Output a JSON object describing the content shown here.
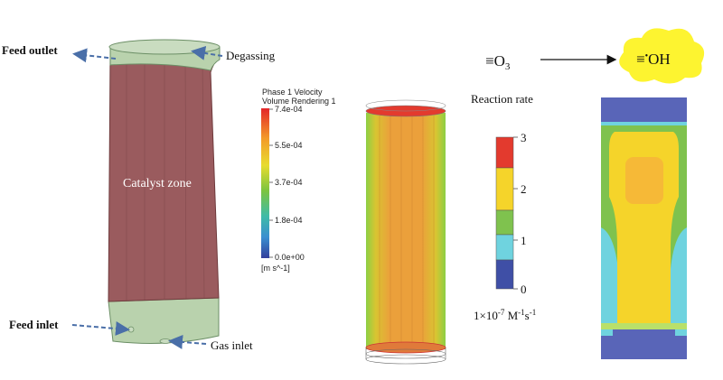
{
  "panel_a": {
    "labels": {
      "feed_outlet": "Feed outlet",
      "degassing": "Degassing",
      "catalyst_zone": "Catalyst zone",
      "feed_inlet": "Feed inlet",
      "gas_inlet": "Gas inlet"
    },
    "colors": {
      "catalyst": "#9a5b5e",
      "gas_zone": "#b9d2ad",
      "arrow": "#4a6fa8"
    }
  },
  "panel_b": {
    "colorbar": {
      "title_line1": "Phase 1 Velocity",
      "title_line2": "Volume Rendering 1",
      "ticks": [
        "7.4e-04",
        "5.5e-04",
        "3.7e-04",
        "1.8e-04",
        "0.0e+00"
      ],
      "unit": "[m s^-1]"
    }
  },
  "panel_c": {
    "colorbar": {
      "title": "Reaction rate",
      "ticks": [
        "3",
        "2",
        "1",
        "0"
      ],
      "unit_base": "1×10",
      "unit_exp": "-7",
      "unit_m": " M",
      "unit_m_exp": "-1",
      "unit_s": "s",
      "unit_s_exp": "-1",
      "colors": [
        "#e33a2e",
        "#f5d42a",
        "#7fc24e",
        "#6fd3df",
        "#3f4fa6"
      ]
    },
    "reaction": {
      "reactant_prefix": "≡O",
      "reactant_sub": "3",
      "product_prefix": "≡",
      "product_dot": "•",
      "product_suffix": "OH",
      "bubble_color": "#fdf430"
    }
  }
}
